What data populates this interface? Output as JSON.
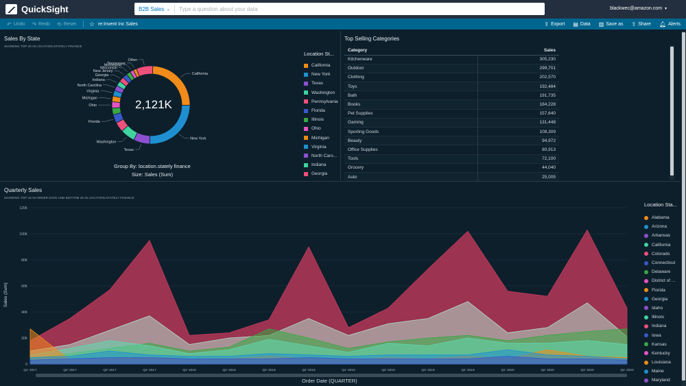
{
  "app": {
    "name": "QuickSight"
  },
  "search": {
    "topic": "B2B Sales",
    "placeholder": "Type a question about your data"
  },
  "user": {
    "email": "blackwec@amazon.com"
  },
  "toolbar": {
    "undo": "Undo",
    "redo": "Redo",
    "reset": "Reset",
    "dashboard_title": "re:Invent Inc Sales",
    "export": "Export",
    "data": "Data",
    "save_as": "Save as",
    "share": "Share",
    "alerts": "Alerts"
  },
  "colors": {
    "topbar": "#232f3e",
    "toolbar": "#00658f",
    "background": "#0d1f2b"
  },
  "sales_by_state": {
    "title": "Sales By State",
    "subtitle": "SHOWING TOP 20 IN LOCATION.STATELY FINANCE",
    "center_value": "2,121K",
    "group_by": "Group By: location.stately finance",
    "size": "Size: Sales (Sum)",
    "legend_title": "Location St...",
    "legend": [
      {
        "label": "California",
        "color": "#f28b1a"
      },
      {
        "label": "New York",
        "color": "#1f8fd1"
      },
      {
        "label": "Texas",
        "color": "#8e4fd0"
      },
      {
        "label": "Washington",
        "color": "#3fd3a0"
      },
      {
        "label": "Pennsylvania",
        "color": "#f0507c"
      },
      {
        "label": "Florida",
        "color": "#3759c9"
      },
      {
        "label": "Illinois",
        "color": "#37a842"
      },
      {
        "label": "Ohio",
        "color": "#e653c4"
      },
      {
        "label": "Michigan",
        "color": "#ef8a17"
      },
      {
        "label": "Virginia",
        "color": "#1f8fd1"
      },
      {
        "label": "North Caro...",
        "color": "#8e4fd0"
      },
      {
        "label": "Indiana",
        "color": "#3fd3a0"
      },
      {
        "label": "Georgia",
        "color": "#f0507c"
      }
    ]
  },
  "chart_data": [
    {
      "type": "pie",
      "categories": [
        "California",
        "New York",
        "Texas",
        "Washington",
        "Pennsylvania",
        "Florida",
        "Illinois",
        "Ohio",
        "Michigan",
        "Virginia",
        "North Carolina",
        "Indiana",
        "Georgia",
        "New Jersey",
        "Wisconsin",
        "Minnesota",
        "Tennessee",
        "Other"
      ],
      "labels": [
        "California",
        "New York",
        "Texas",
        "Washington",
        "Florida",
        "Ohio",
        "Michigan",
        "Virginia",
        "North Carolina",
        "Indiana",
        "Georgia",
        "New Jersey",
        "Wisconsin",
        "Minnesota",
        "Tennessee",
        "Other"
      ],
      "values": [
        356,
        370,
        98,
        88,
        60,
        52,
        40,
        38,
        36,
        34,
        32,
        30,
        30,
        28,
        26,
        22,
        20,
        100
      ],
      "colors": [
        "#f28b1a",
        "#1f8fd1",
        "#8e4fd0",
        "#3fd3a0",
        "#f0507c",
        "#3759c9",
        "#37a842",
        "#e653c4",
        "#ef8a17",
        "#1f8fd1",
        "#8e4fd0",
        "#3fd3a0",
        "#f0507c",
        "#3759c9",
        "#37a842",
        "#e653c4",
        "#ef8a17",
        "#f0507c"
      ],
      "center_label": "2,121K"
    },
    {
      "type": "table",
      "columns": [
        "Category",
        "Sales"
      ],
      "rows": [
        [
          "Kitchenware",
          "305,230"
        ],
        [
          "Outdoor",
          "299,701"
        ],
        [
          "Clothing",
          "202,570"
        ],
        [
          "Toys",
          "192,484"
        ],
        [
          "Bath",
          "191,735"
        ],
        [
          "Books",
          "184,228"
        ],
        [
          "Pet Supplies",
          "157,640"
        ],
        [
          "Gaming",
          "131,448"
        ],
        [
          "Sporting Goods",
          "108,309"
        ],
        [
          "Beauty",
          "94,972"
        ],
        [
          "Office Supplies",
          "80,913"
        ],
        [
          "Tools",
          "72,100"
        ],
        [
          "Grocery",
          "44,040"
        ],
        [
          "Auto",
          "25,005"
        ]
      ]
    },
    {
      "type": "area",
      "x": [
        "Q1' 2017",
        "Q2' 2017",
        "Q3' 2017",
        "Q4' 2017",
        "Q1' 2018",
        "Q2' 2018",
        "Q3' 2018",
        "Q4' 2018",
        "Q1' 2019",
        "Q2' 2019",
        "Q3' 2019",
        "Q4' 2019",
        "Q1' 2020",
        "Q2' 2020",
        "Q3' 2020",
        "Q4' 2020"
      ],
      "ylim": [
        0,
        120000
      ],
      "yticks": [
        "0",
        "20K",
        "40K",
        "60K",
        "80K",
        "100K",
        "120K"
      ],
      "xlabel": "Order Date (QUARTER)",
      "ylabel": "Sales (Sum)",
      "series": [
        {
          "name": "Colorado",
          "color": "#c43a5c",
          "values": [
            18000,
            35000,
            57000,
            95000,
            22000,
            24000,
            34000,
            90000,
            28000,
            43000,
            73000,
            102000,
            56000,
            52000,
            103000,
            43000
          ]
        },
        {
          "name": "California",
          "color": "#b3e0cf",
          "values": [
            10000,
            15000,
            26000,
            37000,
            15000,
            20000,
            22000,
            35000,
            22000,
            31000,
            35000,
            48000,
            24000,
            28000,
            47000,
            21000
          ]
        },
        {
          "name": "Delaware",
          "color": "#37a842",
          "values": [
            4000,
            8000,
            12000,
            16000,
            10000,
            13000,
            27000,
            20000,
            12000,
            17000,
            20000,
            22000,
            18000,
            22000,
            25000,
            27000
          ]
        },
        {
          "name": "Georgia",
          "color": "#5fd9b0",
          "values": [
            7000,
            12000,
            18000,
            14000,
            8000,
            11000,
            19000,
            14000,
            9000,
            16000,
            14000,
            20000,
            16000,
            16000,
            18000,
            15000
          ]
        },
        {
          "name": "Alabama",
          "color": "#f28b1a",
          "values": [
            27000,
            3000,
            4000,
            5000,
            3000,
            4000,
            6000,
            4000,
            3000,
            5000,
            4000,
            6000,
            4000,
            11000,
            6000,
            5000
          ]
        },
        {
          "name": "Arizona",
          "color": "#1f8fd1",
          "values": [
            5000,
            6000,
            10000,
            7000,
            6000,
            6000,
            8000,
            7000,
            6000,
            7000,
            7000,
            7000,
            11000,
            7000,
            6000,
            4000
          ]
        },
        {
          "name": "Connecticut",
          "color": "#3759c9",
          "values": [
            3000,
            4000,
            5000,
            5000,
            4000,
            4000,
            4000,
            5000,
            4000,
            4000,
            4000,
            4000,
            6000,
            4000,
            4000,
            3000
          ]
        }
      ]
    }
  ],
  "top_selling": {
    "title": "Top Selling Categories"
  },
  "quarterly": {
    "title": "Quarterly Sales",
    "subtitle": "SHOWING TOP 16 IN ORDER DATE AND BOTTOM 25 IN LOCATION.STATELY FINANCE",
    "legend_title": "Location Sta...",
    "legend": [
      {
        "label": "Alabama",
        "color": "#f28b1a"
      },
      {
        "label": "Arizona",
        "color": "#1f8fd1"
      },
      {
        "label": "Arkansas",
        "color": "#8e4fd0"
      },
      {
        "label": "California",
        "color": "#3fd3a0"
      },
      {
        "label": "Colorado",
        "color": "#f0507c"
      },
      {
        "label": "Connecticut",
        "color": "#3759c9"
      },
      {
        "label": "Delaware",
        "color": "#37a842"
      },
      {
        "label": "District of ...",
        "color": "#e653c4"
      },
      {
        "label": "Florida",
        "color": "#ef8a17"
      },
      {
        "label": "Georgia",
        "color": "#1f8fd1"
      },
      {
        "label": "Idaho",
        "color": "#8e4fd0"
      },
      {
        "label": "Illinois",
        "color": "#3fd3a0"
      },
      {
        "label": "Indiana",
        "color": "#f0507c"
      },
      {
        "label": "Iowa",
        "color": "#3759c9"
      },
      {
        "label": "Kansas",
        "color": "#37a842"
      },
      {
        "label": "Kentucky",
        "color": "#e653c4"
      },
      {
        "label": "Louisiana",
        "color": "#ef8a17"
      },
      {
        "label": "Maine",
        "color": "#1f8fd1"
      },
      {
        "label": "Maryland",
        "color": "#8e4fd0"
      }
    ]
  }
}
